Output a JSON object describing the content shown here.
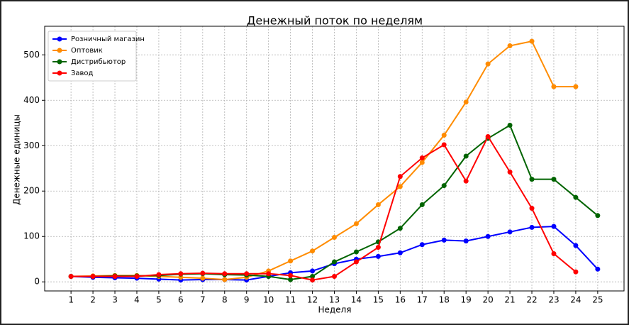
{
  "chart_data": {
    "type": "line",
    "title": "Денежный поток по неделям",
    "x_label": "Неделя",
    "y_label": "Денежные единицы",
    "x": [
      1,
      2,
      3,
      4,
      5,
      6,
      7,
      8,
      9,
      10,
      11,
      12,
      13,
      14,
      15,
      16,
      17,
      18,
      19,
      20,
      21,
      22,
      23,
      24,
      25
    ],
    "series": [
      {
        "name": "Розничный магазин",
        "color": "#0000ff",
        "values": [
          12,
          10,
          9,
          8,
          6,
          4,
          5,
          5,
          4,
          12,
          20,
          24,
          40,
          50,
          56,
          64,
          82,
          92,
          90,
          100,
          110,
          120,
          122,
          80,
          28
        ]
      },
      {
        "name": "Оптовик",
        "color": "#ff8c00",
        "values": [
          12,
          13,
          14,
          14,
          12,
          10,
          8,
          5,
          10,
          24,
          46,
          68,
          98,
          128,
          170,
          210,
          263,
          323,
          396,
          480,
          520,
          530,
          430,
          430,
          null
        ]
      },
      {
        "name": "Дистрибьютор",
        "color": "#006400",
        "values": [
          12,
          12,
          13,
          13,
          14,
          17,
          18,
          16,
          15,
          12,
          5,
          12,
          44,
          66,
          88,
          118,
          170,
          212,
          277,
          316,
          345,
          226,
          226,
          186,
          146
        ]
      },
      {
        "name": "Завод",
        "color": "#ff0000",
        "values": [
          12,
          12,
          12,
          12,
          16,
          18,
          19,
          18,
          18,
          18,
          14,
          4,
          12,
          44,
          76,
          232,
          273,
          302,
          222,
          320,
          242,
          162,
          62,
          22,
          null
        ]
      }
    ],
    "xlim": [
      -0.2,
      26.2
    ],
    "ylim": [
      -20,
      563
    ],
    "xticks": [
      1,
      2,
      3,
      4,
      5,
      6,
      7,
      8,
      9,
      10,
      11,
      12,
      13,
      14,
      15,
      16,
      17,
      18,
      19,
      20,
      21,
      22,
      23,
      24,
      25
    ],
    "yticks": [
      0,
      100,
      200,
      300,
      400,
      500
    ],
    "grid": true,
    "legend": "upper left"
  }
}
